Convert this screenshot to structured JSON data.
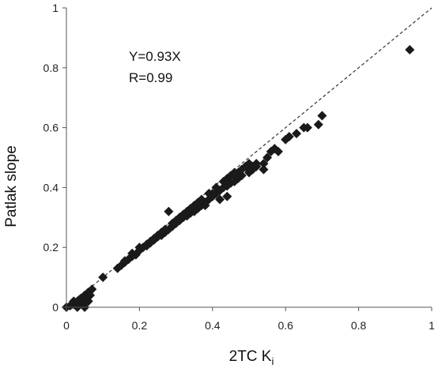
{
  "chart_data": {
    "type": "scatter",
    "title": "",
    "xlabel": "2TC K",
    "xlabel_subscript": "i",
    "ylabel": "Patlak slope",
    "xlim": [
      0,
      1
    ],
    "ylim": [
      0,
      1
    ],
    "x_ticks": [
      0,
      0.2,
      0.4,
      0.6,
      0.8,
      1
    ],
    "x_tick_labels": [
      "0",
      "0.2",
      "0.4",
      "0.6",
      "0.8",
      "1"
    ],
    "y_ticks": [
      0,
      0.2,
      0.4,
      0.6,
      0.8,
      1
    ],
    "y_tick_labels": [
      "0",
      "0.2",
      "0.4",
      "0.6",
      "0.8",
      "1"
    ],
    "grid": false,
    "legend": "none",
    "annotations": [
      "Y=0.93X",
      "R=0.99"
    ],
    "reference_line": {
      "style": "dashed",
      "slope": 1,
      "intercept": 0
    },
    "marker": "diamond",
    "marker_color": "#1a1a1a",
    "series": [
      {
        "points": [
          [
            0.0,
            0.0
          ],
          [
            0.01,
            0.005
          ],
          [
            0.015,
            0.01
          ],
          [
            0.02,
            0.01
          ],
          [
            0.02,
            0.02
          ],
          [
            0.025,
            0.015
          ],
          [
            0.03,
            0.02
          ],
          [
            0.03,
            0.0
          ],
          [
            0.035,
            0.025
          ],
          [
            0.04,
            0.02
          ],
          [
            0.04,
            0.03
          ],
          [
            0.045,
            0.01
          ],
          [
            0.05,
            0.02
          ],
          [
            0.05,
            0.04
          ],
          [
            0.055,
            0.03
          ],
          [
            0.06,
            0.05
          ],
          [
            0.065,
            0.04
          ],
          [
            0.07,
            0.06
          ],
          [
            0.06,
            0.02
          ],
          [
            0.05,
            0.0
          ],
          [
            0.1,
            0.1
          ],
          [
            0.14,
            0.13
          ],
          [
            0.15,
            0.14
          ],
          [
            0.16,
            0.15
          ],
          [
            0.17,
            0.16
          ],
          [
            0.18,
            0.17
          ],
          [
            0.19,
            0.175
          ],
          [
            0.2,
            0.19
          ],
          [
            0.21,
            0.2
          ],
          [
            0.22,
            0.205
          ],
          [
            0.23,
            0.215
          ],
          [
            0.24,
            0.225
          ],
          [
            0.25,
            0.235
          ],
          [
            0.26,
            0.24
          ],
          [
            0.27,
            0.25
          ],
          [
            0.28,
            0.26
          ],
          [
            0.28,
            0.32
          ],
          [
            0.29,
            0.27
          ],
          [
            0.3,
            0.28
          ],
          [
            0.31,
            0.29
          ],
          [
            0.32,
            0.3
          ],
          [
            0.33,
            0.305
          ],
          [
            0.34,
            0.315
          ],
          [
            0.35,
            0.32
          ],
          [
            0.36,
            0.33
          ],
          [
            0.37,
            0.34
          ],
          [
            0.38,
            0.35
          ],
          [
            0.39,
            0.36
          ],
          [
            0.4,
            0.37
          ],
          [
            0.41,
            0.38
          ],
          [
            0.42,
            0.39
          ],
          [
            0.43,
            0.4
          ],
          [
            0.44,
            0.405
          ],
          [
            0.45,
            0.415
          ],
          [
            0.46,
            0.42
          ],
          [
            0.47,
            0.43
          ],
          [
            0.48,
            0.44
          ],
          [
            0.5,
            0.45
          ],
          [
            0.51,
            0.46
          ],
          [
            0.52,
            0.47
          ],
          [
            0.54,
            0.48
          ],
          [
            0.55,
            0.5
          ],
          [
            0.56,
            0.52
          ],
          [
            0.57,
            0.53
          ],
          [
            0.58,
            0.52
          ],
          [
            0.6,
            0.56
          ],
          [
            0.61,
            0.57
          ],
          [
            0.63,
            0.58
          ],
          [
            0.65,
            0.6
          ],
          [
            0.66,
            0.6
          ],
          [
            0.69,
            0.61
          ],
          [
            0.7,
            0.64
          ],
          [
            0.94,
            0.86
          ],
          [
            0.35,
            0.34
          ],
          [
            0.36,
            0.35
          ],
          [
            0.38,
            0.34
          ],
          [
            0.4,
            0.38
          ],
          [
            0.41,
            0.4
          ],
          [
            0.43,
            0.42
          ],
          [
            0.44,
            0.43
          ],
          [
            0.45,
            0.44
          ],
          [
            0.46,
            0.45
          ],
          [
            0.47,
            0.45
          ],
          [
            0.48,
            0.46
          ],
          [
            0.5,
            0.46
          ],
          [
            0.51,
            0.47
          ],
          [
            0.52,
            0.48
          ],
          [
            0.54,
            0.46
          ],
          [
            0.31,
            0.3
          ],
          [
            0.32,
            0.31
          ],
          [
            0.33,
            0.32
          ],
          [
            0.34,
            0.33
          ],
          [
            0.29,
            0.28
          ],
          [
            0.26,
            0.25
          ],
          [
            0.25,
            0.24
          ],
          [
            0.24,
            0.23
          ],
          [
            0.22,
            0.21
          ],
          [
            0.2,
            0.2
          ],
          [
            0.18,
            0.18
          ],
          [
            0.16,
            0.155
          ],
          [
            0.42,
            0.36
          ],
          [
            0.44,
            0.37
          ],
          [
            0.39,
            0.38
          ],
          [
            0.37,
            0.36
          ],
          [
            0.3,
            0.29
          ],
          [
            0.27,
            0.26
          ],
          [
            0.23,
            0.22
          ],
          [
            0.46,
            0.44
          ],
          [
            0.49,
            0.47
          ],
          [
            0.5,
            0.48
          ]
        ]
      }
    ]
  }
}
